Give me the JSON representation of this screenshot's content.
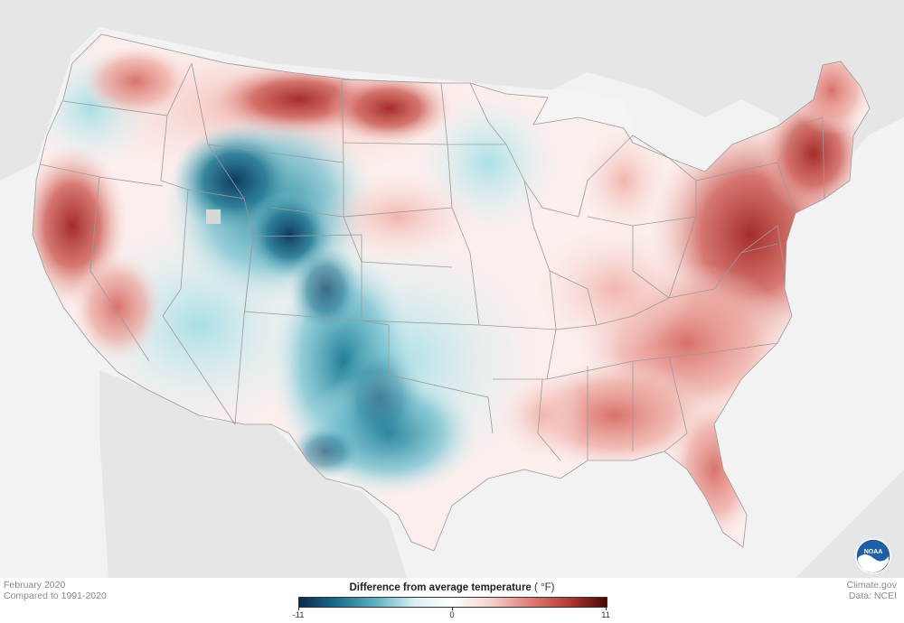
{
  "footer": {
    "date": "February 2020",
    "baseline": "Compared to 1991-2020",
    "site": "Climate.gov",
    "source": "Data: NCEI"
  },
  "legend": {
    "title": "Difference from average temperature",
    "unit": "( °F)",
    "ticks": [
      "-11",
      "0",
      "11"
    ],
    "range": [
      -11,
      11
    ],
    "colors": [
      "#0a2a52",
      "#1e6f8e",
      "#5eb3c4",
      "#d8f0f3",
      "#ffffff",
      "#f6d0cc",
      "#e07f76",
      "#b53a36",
      "#4a0606"
    ]
  },
  "logo": {
    "name": "noaa-logo",
    "text": "NOAA"
  },
  "map": {
    "land_color": "#e6e6e6",
    "state_border_color": "#9a9a9a"
  }
}
